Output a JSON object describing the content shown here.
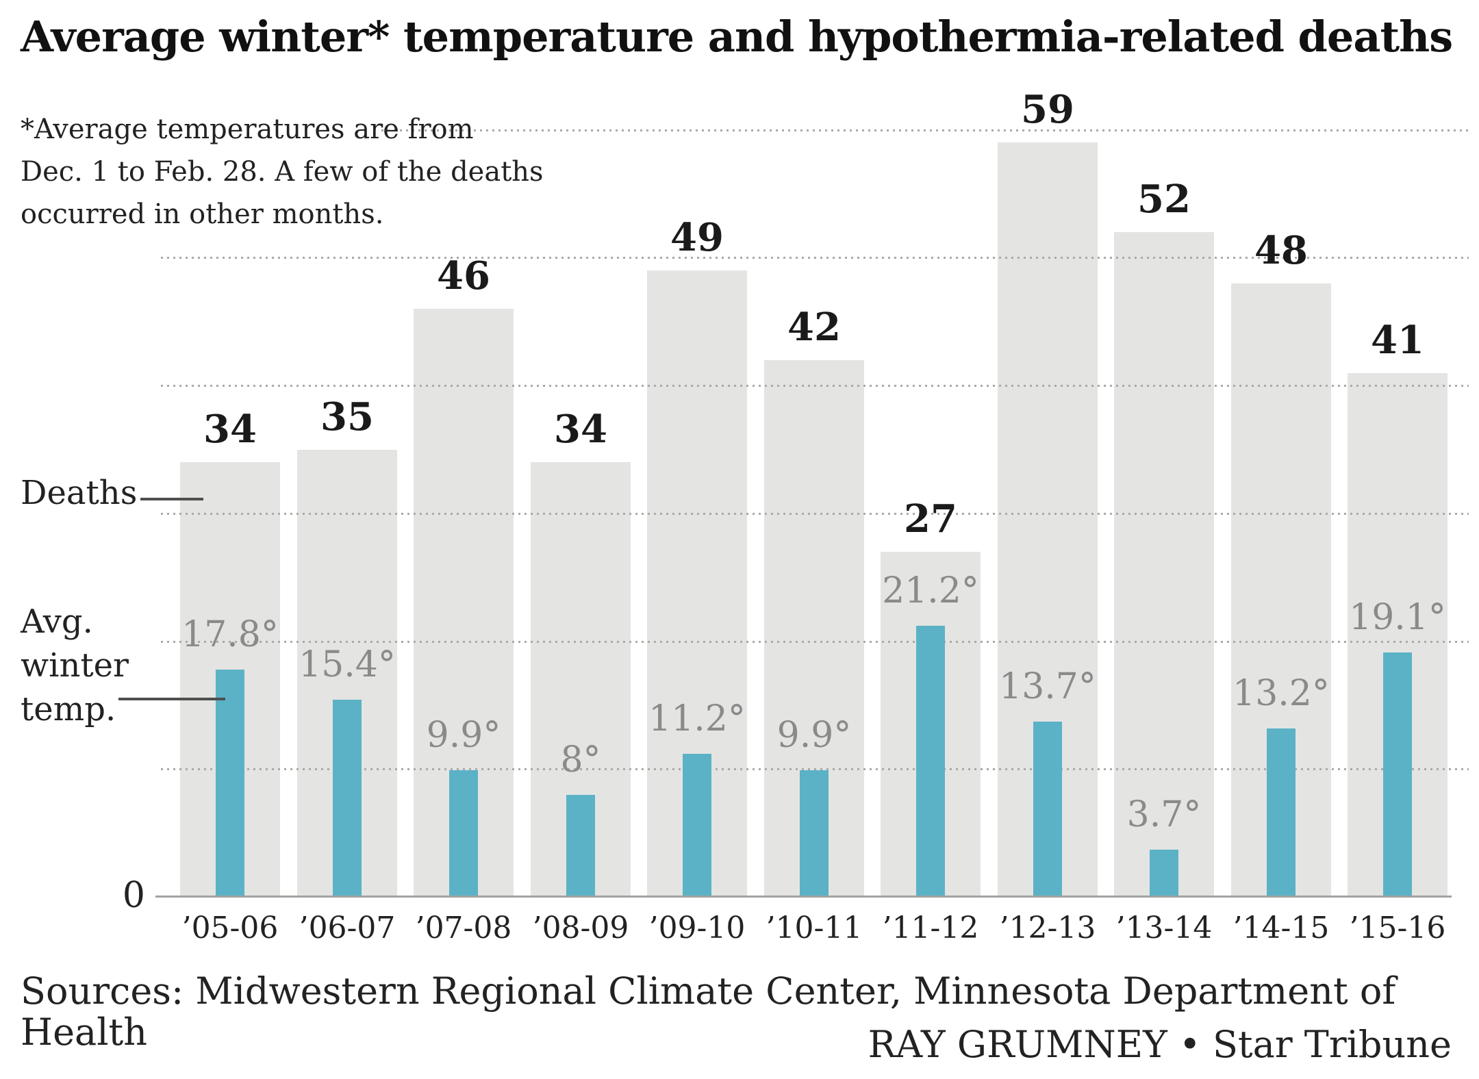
{
  "chart_data": {
    "type": "bar",
    "title": "Average winter* temperature and hypothermia-related deaths",
    "footnote": "*Average temperatures are from\nDec. 1 to Feb. 28. A few of the deaths\noccurred in other months.",
    "categories": [
      "’05-06",
      "’06-07",
      "’07-08",
      "’08-09",
      "’09-10",
      "’10-11",
      "’11-12",
      "’12-13",
      "’13-14",
      "’14-15",
      "’15-16"
    ],
    "series": [
      {
        "name": "Deaths",
        "values": [
          34,
          35,
          46,
          34,
          49,
          42,
          27,
          59,
          52,
          48,
          41
        ],
        "bar_color": "#e4e4e2",
        "label_color": "#1a1a1a",
        "unit": ""
      },
      {
        "name": "Avg. winter temp.",
        "values": [
          17.8,
          15.4,
          9.9,
          8,
          11.2,
          9.9,
          21.2,
          13.7,
          3.7,
          13.2,
          19.1
        ],
        "bar_color": "#5bb2c6",
        "label_color": "#8a8a8a",
        "unit": "°"
      }
    ],
    "ylim": [
      0,
      60
    ],
    "gridline_values": [
      10,
      20,
      30,
      40,
      50,
      60
    ],
    "grid_on": true,
    "zero_label": "0",
    "legend": {
      "deaths_label": "Deaths",
      "avg_temp_label": "Avg.\nwinter\ntemp.",
      "position": "left"
    },
    "grid_color": "#a9a9a7",
    "axis_color": "#a2a2a0"
  },
  "footer": {
    "sources": "Sources: Midwestern Regional Climate Center, Minnesota Department of Health",
    "credit": "RAY GRUMNEY • Star Tribune"
  }
}
